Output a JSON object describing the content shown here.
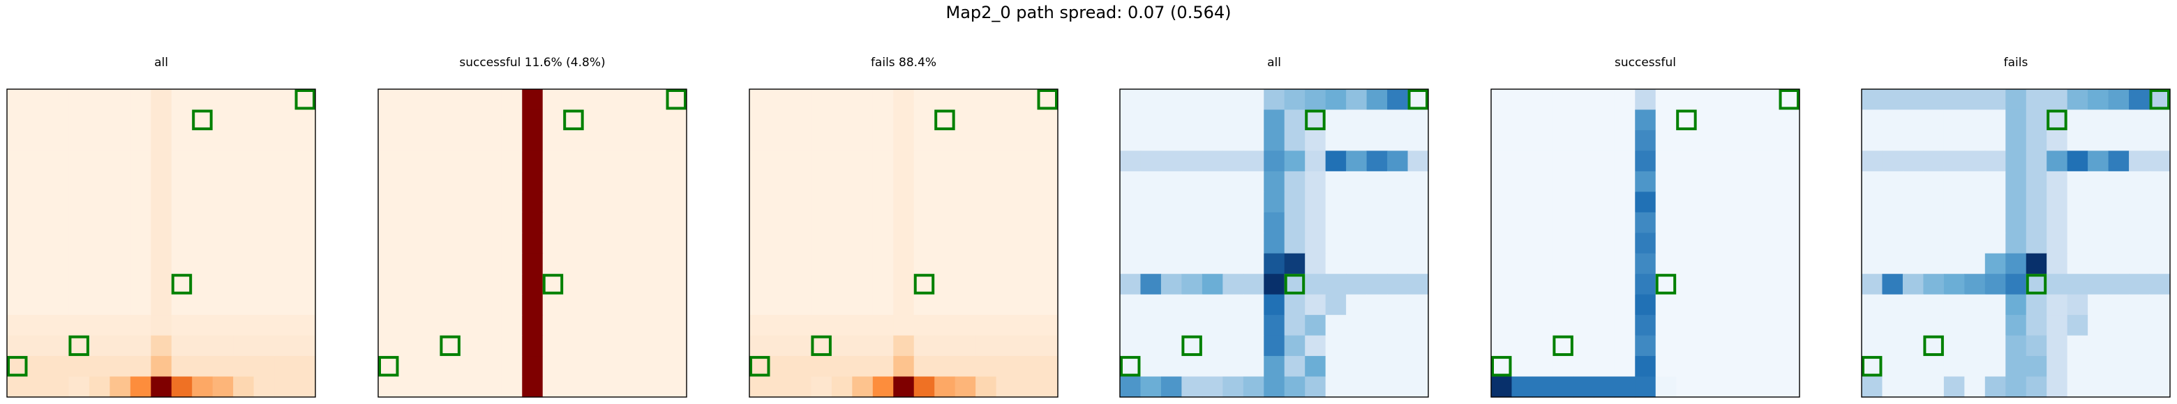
{
  "figure": {
    "title": "Map2_0 path spread: 0.07 (0.564)"
  },
  "colors": {
    "orange_low": "#fff5eb",
    "orange_high": "#7f0000",
    "blue_low": "#f7fbff",
    "blue_high": "#08306b",
    "marker": "#008000"
  },
  "chart_data": [
    {
      "type": "heatmap",
      "title": "all",
      "colormap": "oranges",
      "grid": [
        15,
        15
      ],
      "markers": [
        [
          13,
          0
        ],
        [
          12,
          3
        ],
        [
          9,
          8
        ],
        [
          1,
          9
        ],
        [
          0,
          14
        ]
      ],
      "cells": {
        "base": 0.03,
        "cols": [
          [
            7,
            0.08
          ]
        ],
        "rows": [
          [
            11,
            0.06
          ],
          [
            12,
            0.08
          ],
          [
            13,
            0.12
          ],
          [
            14,
            0.12
          ]
        ],
        "points": [
          [
            14,
            7,
            1.0
          ],
          [
            14,
            8,
            0.6
          ],
          [
            14,
            6,
            0.5
          ],
          [
            14,
            9,
            0.4
          ],
          [
            14,
            10,
            0.35
          ],
          [
            14,
            5,
            0.3
          ],
          [
            14,
            11,
            0.2
          ],
          [
            14,
            4,
            0.15
          ],
          [
            14,
            3,
            0.1
          ],
          [
            13,
            7,
            0.3
          ],
          [
            12,
            7,
            0.2
          ]
        ]
      }
    },
    {
      "type": "heatmap",
      "title": "successful 11.6% (4.8%)",
      "colormap": "oranges",
      "grid": [
        15,
        15
      ],
      "markers": [
        [
          13,
          0
        ],
        [
          12,
          3
        ],
        [
          9,
          8
        ],
        [
          1,
          9
        ],
        [
          0,
          14
        ]
      ],
      "cells": {
        "base": 0.03,
        "cols": [
          [
            7,
            1.0
          ]
        ],
        "rows": [],
        "points": []
      }
    },
    {
      "type": "heatmap",
      "title": "fails 88.4%",
      "colormap": "oranges",
      "grid": [
        15,
        15
      ],
      "markers": [
        [
          13,
          0
        ],
        [
          12,
          3
        ],
        [
          9,
          8
        ],
        [
          1,
          9
        ],
        [
          0,
          14
        ]
      ],
      "cells": {
        "base": 0.03,
        "cols": [
          [
            7,
            0.06
          ]
        ],
        "rows": [
          [
            11,
            0.06
          ],
          [
            12,
            0.08
          ],
          [
            13,
            0.12
          ],
          [
            14,
            0.12
          ]
        ],
        "points": [
          [
            14,
            7,
            1.0
          ],
          [
            14,
            8,
            0.6
          ],
          [
            14,
            6,
            0.5
          ],
          [
            14,
            9,
            0.4
          ],
          [
            14,
            10,
            0.35
          ],
          [
            14,
            5,
            0.3
          ],
          [
            14,
            11,
            0.2
          ],
          [
            14,
            4,
            0.15
          ],
          [
            14,
            3,
            0.1
          ],
          [
            13,
            7,
            0.3
          ],
          [
            12,
            7,
            0.2
          ]
        ]
      }
    },
    {
      "type": "heatmap",
      "title": "all",
      "colormap": "blues",
      "grid": [
        15,
        15
      ],
      "markers": [
        [
          13,
          0
        ],
        [
          12,
          3
        ],
        [
          9,
          8
        ],
        [
          1,
          9
        ],
        [
          0,
          14
        ]
      ],
      "cells": {
        "base": 0.05,
        "cols": [
          [
            7,
            0.55
          ],
          [
            8,
            0.3
          ],
          [
            9,
            0.2
          ]
        ],
        "rows": [
          [
            9,
            0.3
          ],
          [
            3,
            0.25
          ]
        ],
        "points": [
          [
            9,
            7,
            1.0
          ],
          [
            8,
            7,
            0.85
          ],
          [
            10,
            7,
            0.75
          ],
          [
            11,
            7,
            0.7
          ],
          [
            12,
            7,
            0.7
          ],
          [
            7,
            7,
            0.6
          ],
          [
            6,
            7,
            0.6
          ],
          [
            5,
            7,
            0.55
          ],
          [
            3,
            7,
            0.6
          ],
          [
            3,
            8,
            0.5
          ],
          [
            3,
            10,
            0.75
          ],
          [
            3,
            11,
            0.55
          ],
          [
            3,
            12,
            0.7
          ],
          [
            3,
            13,
            0.6
          ],
          [
            0,
            7,
            0.35
          ],
          [
            0,
            8,
            0.4
          ],
          [
            0,
            9,
            0.45
          ],
          [
            0,
            10,
            0.5
          ],
          [
            0,
            11,
            0.4
          ],
          [
            0,
            12,
            0.55
          ],
          [
            0,
            13,
            0.7
          ],
          [
            8,
            8,
            0.95
          ],
          [
            9,
            1,
            0.65
          ],
          [
            9,
            2,
            0.35
          ],
          [
            9,
            3,
            0.4
          ],
          [
            9,
            4,
            0.5
          ],
          [
            14,
            0,
            0.6
          ],
          [
            14,
            1,
            0.5
          ],
          [
            14,
            2,
            0.6
          ],
          [
            14,
            3,
            0.3
          ],
          [
            14,
            4,
            0.3
          ],
          [
            14,
            5,
            0.35
          ],
          [
            14,
            6,
            0.4
          ],
          [
            14,
            7,
            0.55
          ],
          [
            14,
            8,
            0.45
          ],
          [
            14,
            9,
            0.35
          ],
          [
            13,
            9,
            0.5
          ],
          [
            12,
            8,
            0.4
          ],
          [
            11,
            9,
            0.4
          ],
          [
            10,
            10,
            0.3
          ]
        ]
      }
    },
    {
      "type": "heatmap",
      "title": "successful",
      "colormap": "blues",
      "grid": [
        15,
        15
      ],
      "markers": [
        [
          13,
          0
        ],
        [
          12,
          3
        ],
        [
          9,
          8
        ],
        [
          1,
          9
        ],
        [
          0,
          14
        ]
      ],
      "cells": {
        "base": 0.03,
        "cols": [
          [
            7,
            0.7
          ]
        ],
        "rows": [
          [
            14,
            0.72
          ]
        ],
        "points": [
          [
            0,
            7,
            0.25
          ],
          [
            1,
            7,
            0.6
          ],
          [
            2,
            7,
            0.65
          ],
          [
            3,
            7,
            0.7
          ],
          [
            4,
            7,
            0.6
          ],
          [
            5,
            7,
            0.75
          ],
          [
            6,
            7,
            0.65
          ],
          [
            7,
            7,
            0.7
          ],
          [
            8,
            7,
            0.65
          ],
          [
            9,
            7,
            0.7
          ],
          [
            10,
            7,
            0.75
          ],
          [
            11,
            7,
            0.7
          ],
          [
            12,
            7,
            0.65
          ],
          [
            13,
            7,
            0.75
          ],
          [
            14,
            0,
            1.0
          ],
          [
            14,
            8,
            0.05
          ],
          [
            14,
            9,
            0.03
          ],
          [
            14,
            10,
            0.03
          ],
          [
            14,
            11,
            0.03
          ],
          [
            14,
            12,
            0.03
          ],
          [
            14,
            13,
            0.03
          ],
          [
            14,
            14,
            0.03
          ]
        ]
      }
    },
    {
      "type": "heatmap",
      "title": "fails",
      "colormap": "blues",
      "grid": [
        15,
        15
      ],
      "markers": [
        [
          13,
          0
        ],
        [
          12,
          3
        ],
        [
          9,
          8
        ],
        [
          1,
          9
        ],
        [
          0,
          14
        ]
      ],
      "cells": {
        "base": 0.05,
        "cols": [
          [
            7,
            0.4
          ],
          [
            8,
            0.3
          ],
          [
            9,
            0.2
          ]
        ],
        "rows": [
          [
            9,
            0.3
          ],
          [
            3,
            0.25
          ],
          [
            0,
            0.3
          ]
        ],
        "points": [
          [
            9,
            7,
            0.7
          ],
          [
            8,
            7,
            0.6
          ],
          [
            10,
            7,
            0.5
          ],
          [
            11,
            7,
            0.45
          ],
          [
            3,
            9,
            0.55
          ],
          [
            3,
            10,
            0.75
          ],
          [
            3,
            11,
            0.55
          ],
          [
            3,
            12,
            0.7
          ],
          [
            0,
            10,
            0.45
          ],
          [
            0,
            11,
            0.5
          ],
          [
            0,
            12,
            0.55
          ],
          [
            0,
            13,
            0.7
          ],
          [
            8,
            8,
            1.0
          ],
          [
            8,
            6,
            0.5
          ],
          [
            9,
            1,
            0.7
          ],
          [
            9,
            2,
            0.35
          ],
          [
            9,
            3,
            0.45
          ],
          [
            9,
            4,
            0.5
          ],
          [
            9,
            5,
            0.55
          ],
          [
            9,
            6,
            0.6
          ],
          [
            14,
            0,
            0.3
          ],
          [
            14,
            4,
            0.3
          ],
          [
            14,
            6,
            0.35
          ],
          [
            14,
            8,
            0.35
          ],
          [
            13,
            8,
            0.4
          ],
          [
            12,
            8,
            0.35
          ],
          [
            11,
            10,
            0.3
          ],
          [
            10,
            10,
            0.25
          ]
        ]
      }
    }
  ]
}
